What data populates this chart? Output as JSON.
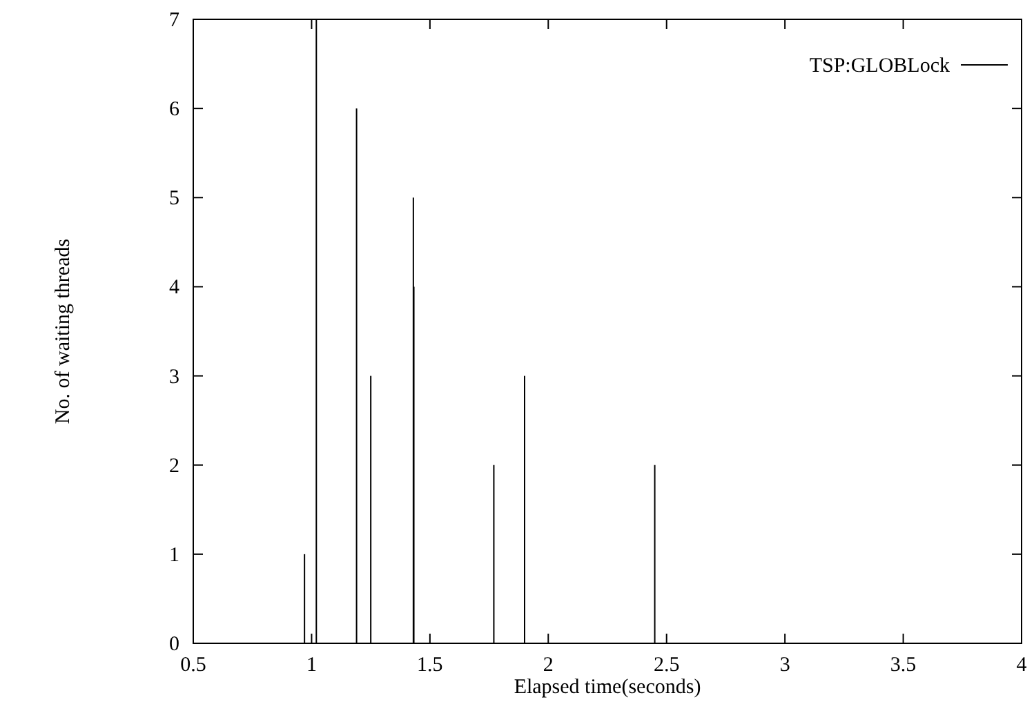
{
  "chart_data": {
    "type": "bar",
    "xlabel": "Elapsed time(seconds)",
    "ylabel": "No. of waiting threads",
    "x": [
      0.97,
      1.02,
      1.19,
      1.25,
      1.43,
      1.432,
      1.77,
      1.9,
      2.45
    ],
    "series": [
      {
        "name": "TSP:GLOBLock",
        "color": "#000000",
        "values": [
          1,
          7,
          6,
          3,
          5,
          4,
          2,
          3,
          2
        ]
      }
    ],
    "xlim": [
      0.5,
      4
    ],
    "xticks": [
      0.5,
      1,
      1.5,
      2,
      2.5,
      3,
      3.5,
      4
    ],
    "ylim": [
      0,
      7
    ],
    "yticks": [
      0,
      1,
      2,
      3,
      4,
      5,
      6,
      7
    ],
    "grid": false,
    "legend": "top right"
  }
}
